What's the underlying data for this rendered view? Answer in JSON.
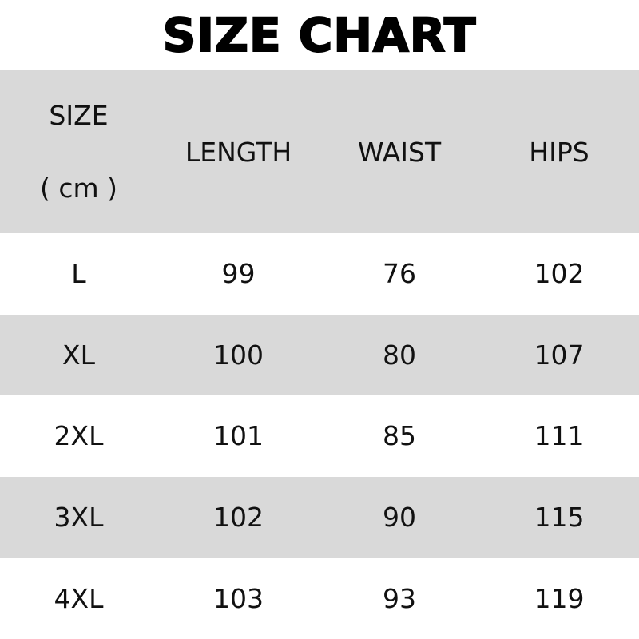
{
  "title": "SIZE CHART",
  "headers": {
    "size": "SIZE",
    "unit": "( cm )",
    "length": "LENGTH",
    "waist": "WAIST",
    "hips": "HIPS"
  },
  "rows": [
    {
      "size": "L",
      "length": "99",
      "waist": "76",
      "hips": "102"
    },
    {
      "size": "XL",
      "length": "100",
      "waist": "80",
      "hips": "107"
    },
    {
      "size": "2XL",
      "length": "101",
      "waist": "85",
      "hips": "111"
    },
    {
      "size": "3XL",
      "length": "102",
      "waist": "90",
      "hips": "115"
    },
    {
      "size": "4XL",
      "length": "103",
      "waist": "93",
      "hips": "119"
    }
  ],
  "colors": {
    "stripe": "#d9d9d9",
    "background": "#ffffff"
  }
}
